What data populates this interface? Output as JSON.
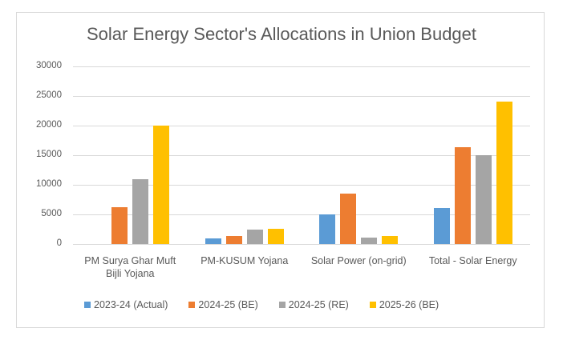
{
  "chart_data": {
    "type": "bar",
    "title": "Solar Energy Sector's Allocations in Union Budget",
    "xlabel": "",
    "ylabel": "",
    "ylim": [
      0,
      30000
    ],
    "yticks": [
      "0",
      "5000",
      "10000",
      "15000",
      "20000",
      "25000",
      "30000"
    ],
    "grid": true,
    "legend_position": "bottom",
    "categories": [
      "PM Surya Ghar Muft Bijli Yojana",
      "PM-KUSUM Yojana",
      "Solar Power (on-grid)",
      "Total - Solar Energy"
    ],
    "category_lines": [
      [
        "PM Surya Ghar Muft",
        "Bijli Yojana"
      ],
      [
        "PM-KUSUM Yojana"
      ],
      [
        "Solar Power (on-grid)"
      ],
      [
        "Total - Solar Energy"
      ]
    ],
    "series": [
      {
        "name": "2023-24 (Actual)",
        "color": "#5B9BD5",
        "values": [
          0,
          1000,
          4970,
          6100
        ]
      },
      {
        "name": "2024-25 (BE)",
        "color": "#ED7D31",
        "values": [
          6250,
          1400,
          8500,
          16300
        ]
      },
      {
        "name": "2024-25 (RE)",
        "color": "#A5A5A5",
        "values": [
          11000,
          2500,
          1100,
          15000
        ]
      },
      {
        "name": "2025-26 (BE)",
        "color": "#FFC000",
        "values": [
          20000,
          2600,
          1400,
          24000
        ]
      }
    ]
  }
}
